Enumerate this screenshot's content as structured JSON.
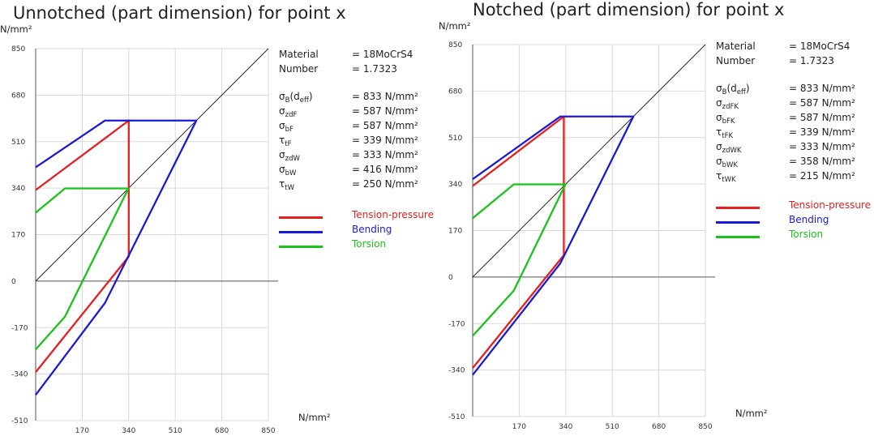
{
  "colors": {
    "tension": "#e61e1e",
    "bending": "#1a1ad6",
    "torsion": "#19c319",
    "grid": "#d9d9d9",
    "axis": "#555555"
  },
  "chart_data": [
    {
      "type": "line",
      "title": "Unnotched (part dimension) for point x",
      "ylabel": "N/mm²",
      "xlabel": "N/mm²",
      "xlim": [
        0,
        850
      ],
      "ylim": [
        -510,
        850
      ],
      "x_ticks": [
        "170",
        "340",
        "510",
        "680",
        "850"
      ],
      "y_ticks": [
        "850",
        "680",
        "510",
        "340",
        "170",
        "0",
        "-170",
        "-340",
        "-510"
      ],
      "grid": true,
      "series": [
        {
          "name": "Tension-pressure",
          "color_key": "tension",
          "points": [
            [
              0,
              333
            ],
            [
              340,
              587
            ],
            [
              340,
              90
            ],
            [
              0,
              -333
            ]
          ]
        },
        {
          "name": "Bending",
          "color_key": "bending",
          "points": [
            [
              0,
              416
            ],
            [
              253,
              587
            ],
            [
              587,
              587
            ],
            [
              253,
              -80
            ],
            [
              0,
              -416
            ]
          ]
        },
        {
          "name": "Torsion",
          "color_key": "torsion",
          "points": [
            [
              0,
              250
            ],
            [
              107,
              339
            ],
            [
              339,
              339
            ],
            [
              107,
              -130
            ],
            [
              0,
              -250
            ]
          ]
        }
      ],
      "reference_line": {
        "from": [
          0,
          0
        ],
        "to": [
          850,
          850
        ]
      },
      "properties": {
        "material": {
          "key": "Material",
          "value": "= 18MoCrS4"
        },
        "number": {
          "key": "Number",
          "value": "= 1.7323"
        },
        "items": [
          {
            "sym": "σ",
            "sub": "B",
            "rest": "(d",
            "sub2": "eff",
            "end": ")",
            "value": "= 833  N/mm²"
          },
          {
            "sym": "σ",
            "sub": "zdF",
            "value": "= 587  N/mm²"
          },
          {
            "sym": "σ",
            "sub": "bF",
            "value": "= 587  N/mm²"
          },
          {
            "sym": "τ",
            "sub": "tF",
            "value": "= 339  N/mm²"
          },
          {
            "sym": "σ",
            "sub": "zdW",
            "value": "= 333  N/mm²"
          },
          {
            "sym": "σ",
            "sub": "bW",
            "value": "= 416  N/mm²"
          },
          {
            "sym": "τ",
            "sub": "tW",
            "value": "= 250  N/mm²"
          }
        ]
      },
      "legend": [
        "Tension-pressure",
        "Bending",
        "Torsion"
      ]
    },
    {
      "type": "line",
      "title": "Notched (part dimension) for point x",
      "ylabel": "N/mm²",
      "xlabel": "N/mm²",
      "xlim": [
        0,
        850
      ],
      "ylim": [
        -510,
        850
      ],
      "x_ticks": [
        "170",
        "340",
        "510",
        "680",
        "850"
      ],
      "y_ticks": [
        "850",
        "680",
        "510",
        "340",
        "170",
        "0",
        "-170",
        "-340",
        "-510"
      ],
      "grid": true,
      "series": [
        {
          "name": "Tension-pressure",
          "color_key": "tension",
          "points": [
            [
              0,
              333
            ],
            [
              333,
              587
            ],
            [
              333,
              80
            ],
            [
              0,
              -333
            ]
          ]
        },
        {
          "name": "Bending",
          "color_key": "bending",
          "points": [
            [
              0,
              358
            ],
            [
              320,
              587
            ],
            [
              587,
              587
            ],
            [
              320,
              50
            ],
            [
              0,
              -358
            ]
          ]
        },
        {
          "name": "Torsion",
          "color_key": "torsion",
          "points": [
            [
              0,
              215
            ],
            [
              150,
              339
            ],
            [
              339,
              339
            ],
            [
              150,
              -50
            ],
            [
              0,
              -215
            ]
          ]
        }
      ],
      "reference_line": {
        "from": [
          0,
          0
        ],
        "to": [
          850,
          850
        ]
      },
      "properties": {
        "material": {
          "key": "Material",
          "value": "= 18MoCrS4"
        },
        "number": {
          "key": "Number",
          "value": "= 1.7323"
        },
        "items": [
          {
            "sym": "σ",
            "sub": "B",
            "rest": "(d",
            "sub2": "eff",
            "end": ")",
            "value": "= 833  N/mm²"
          },
          {
            "sym": "σ",
            "sub": "zdFK",
            "value": "= 587  N/mm²"
          },
          {
            "sym": "σ",
            "sub": "bFK",
            "value": "= 587  N/mm²"
          },
          {
            "sym": "τ",
            "sub": "tFK",
            "value": "= 339  N/mm²"
          },
          {
            "sym": "σ",
            "sub": "zdWK",
            "value": "= 333  N/mm²"
          },
          {
            "sym": "σ",
            "sub": "bWK",
            "value": "= 358  N/mm²"
          },
          {
            "sym": "τ",
            "sub": "tWK",
            "value": "= 215  N/mm²"
          }
        ]
      },
      "legend": [
        "Tension-pressure",
        "Bending",
        "Torsion"
      ]
    }
  ]
}
